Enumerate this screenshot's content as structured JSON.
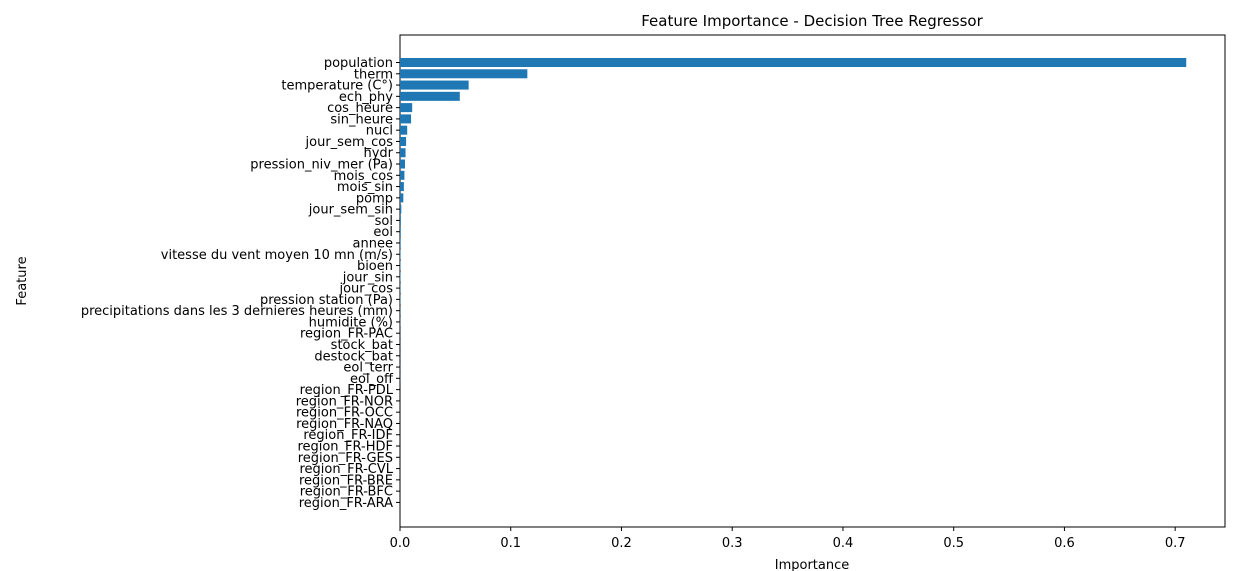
{
  "chart_data": {
    "type": "bar",
    "orientation": "horizontal",
    "title": "Feature Importance - Decision Tree Regressor",
    "xlabel": "Importance",
    "ylabel": "Feature",
    "xlim": [
      0,
      0.745
    ],
    "xticks": [
      "0.0",
      "0.1",
      "0.2",
      "0.3",
      "0.4",
      "0.5",
      "0.6",
      "0.7"
    ],
    "grid": false,
    "bar_color": "#1f77b4",
    "categories": [
      "population",
      "therm",
      "temperature (C°)",
      "ech_phy",
      "cos_heure",
      "sin_heure",
      "nucl",
      "jour_sem_cos",
      "hydr",
      "pression_niv_mer (Pa)",
      "mois_cos",
      "mois_sin",
      "pomp",
      "jour_sem_sin",
      "sol",
      "eol",
      "annee",
      "vitesse du vent moyen 10 mn (m/s)",
      "bioen",
      "jour_sin",
      "jour_cos",
      "pression station (Pa)",
      "precipitations dans les 3 dernieres heures (mm)",
      "humidite (%)",
      "region_FR-PAC",
      "stock_bat",
      "destock_bat",
      "eol_terr",
      "eol_off",
      "region_FR-PDL",
      "region_FR-NOR",
      "region_FR-OCC",
      "region_FR-NAQ",
      "region_FR-IDF",
      "region_FR-HDF",
      "region_FR-GES",
      "region_FR-CVL",
      "region_FR-BRE",
      "region_FR-BFC",
      "region_FR-ARA"
    ],
    "values": [
      0.71,
      0.115,
      0.062,
      0.054,
      0.011,
      0.01,
      0.0065,
      0.0055,
      0.005,
      0.0045,
      0.004,
      0.0035,
      0.003,
      0.0012,
      0.0008,
      0.0007,
      0.0006,
      0.0005,
      0.0004,
      0.0004,
      0.0003,
      0.0003,
      0.0002,
      0.0002,
      0.0001,
      0.0001,
      0.0001,
      0.0001,
      0.0001,
      0,
      0,
      0,
      0,
      0,
      0,
      0,
      0,
      0,
      0,
      0
    ]
  }
}
